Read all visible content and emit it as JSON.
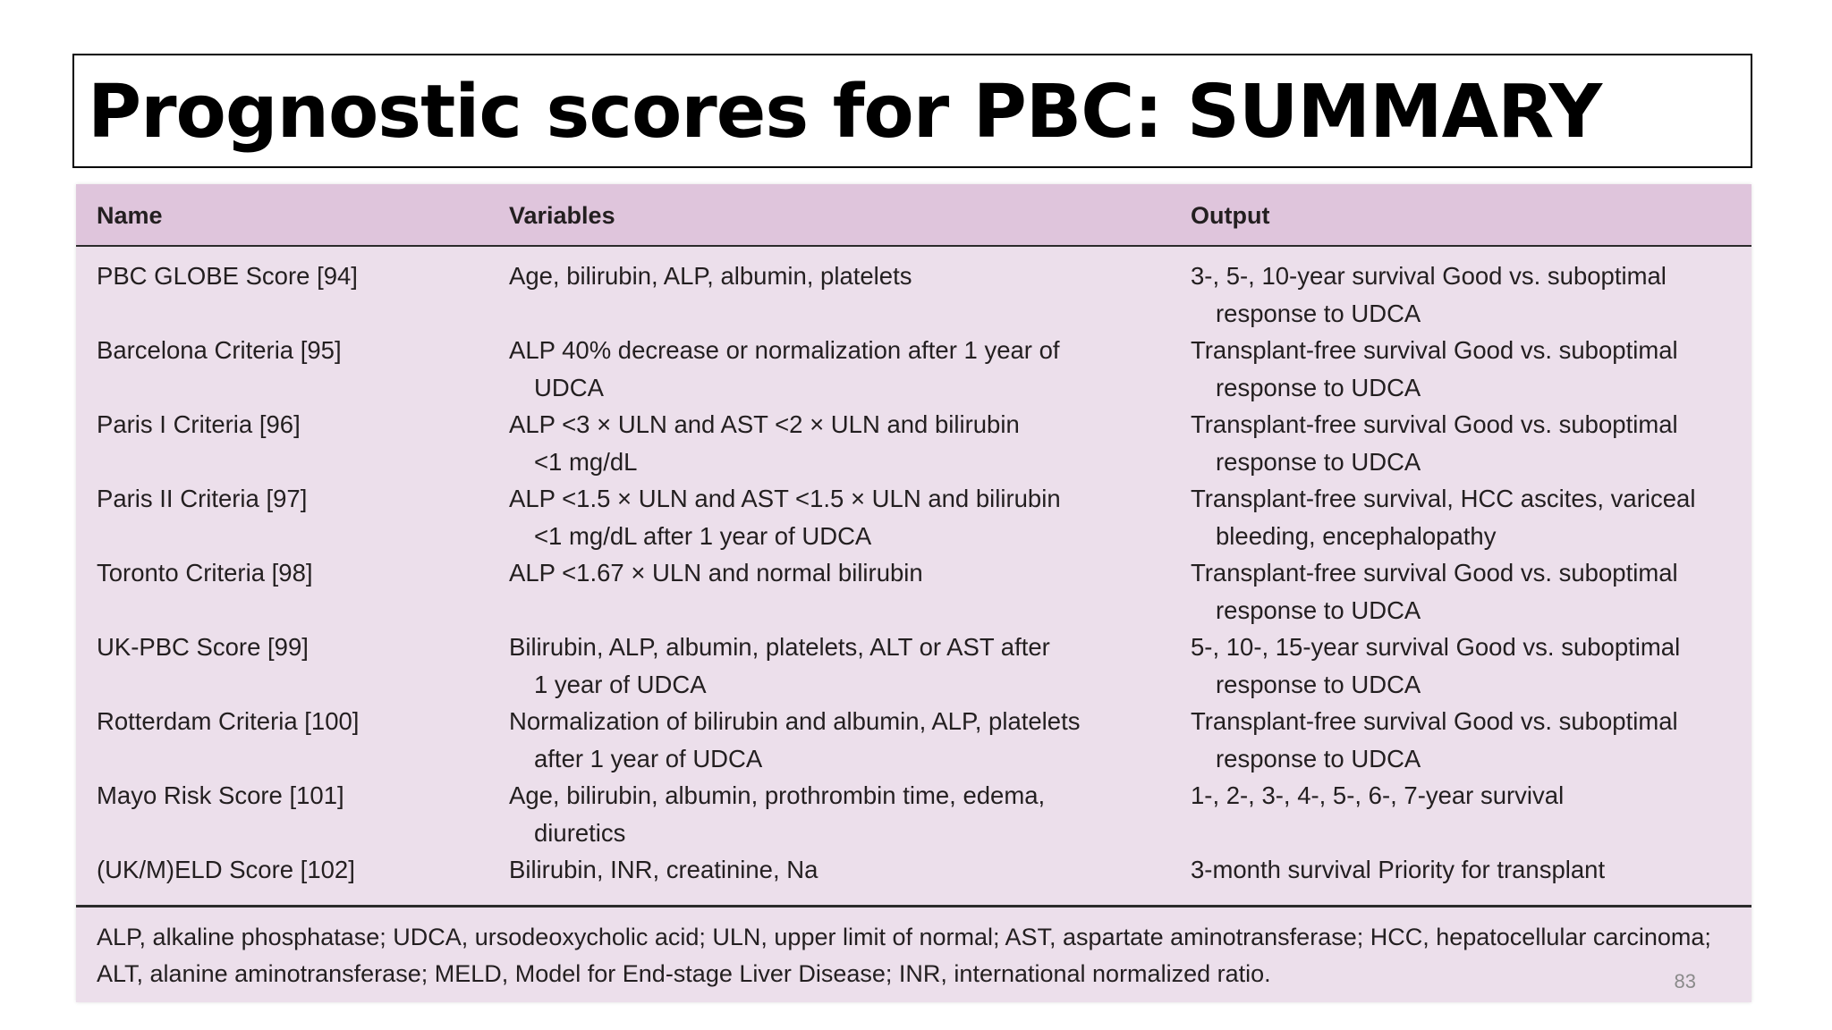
{
  "slide": {
    "title": "Prognostic scores for PBC: SUMMARY",
    "page_number": "83"
  },
  "table": {
    "headers": {
      "name": "Name",
      "variables": "Variables",
      "output": "Output"
    },
    "rows": [
      {
        "name": "PBC GLOBE Score [94]",
        "variables": [
          "Age, bilirubin, ALP, albumin, platelets"
        ],
        "output": [
          "3-, 5-, 10-year survival Good vs. suboptimal",
          "response to UDCA"
        ]
      },
      {
        "name": "Barcelona Criteria [95]",
        "variables": [
          "ALP 40% decrease or normalization after 1 year of",
          "UDCA"
        ],
        "output": [
          "Transplant-free survival Good vs. suboptimal",
          "response to UDCA"
        ]
      },
      {
        "name": "Paris I Criteria [96]",
        "variables": [
          "ALP <3 × ULN and AST <2 × ULN and bilirubin",
          "<1 mg/dL"
        ],
        "output": [
          "Transplant-free survival Good vs. suboptimal",
          "response to UDCA"
        ]
      },
      {
        "name": "Paris II Criteria [97]",
        "variables": [
          "ALP <1.5 × ULN and AST <1.5 × ULN and bilirubin",
          "<1 mg/dL after 1 year of UDCA"
        ],
        "output": [
          "Transplant-free survival, HCC ascites, variceal",
          "bleeding, encephalopathy"
        ]
      },
      {
        "name": "Toronto Criteria [98]",
        "variables": [
          "ALP <1.67 × ULN and normal bilirubin"
        ],
        "output": [
          "Transplant-free survival Good vs. suboptimal",
          "response to UDCA"
        ]
      },
      {
        "name": "UK-PBC Score [99]",
        "variables": [
          "Bilirubin, ALP, albumin, platelets, ALT or AST after",
          "1 year of UDCA"
        ],
        "output": [
          "5-, 10-, 15-year survival Good vs. suboptimal",
          "response to UDCA"
        ]
      },
      {
        "name": "Rotterdam Criteria [100]",
        "variables": [
          "Normalization of bilirubin and albumin, ALP, platelets",
          "after 1 year of UDCA"
        ],
        "output": [
          "Transplant-free survival Good vs. suboptimal",
          "response to UDCA"
        ]
      },
      {
        "name": "Mayo Risk Score [101]",
        "variables": [
          "Age, bilirubin, albumin, prothrombin time, edema,",
          "diuretics"
        ],
        "output": [
          "1-, 2-, 3-, 4-, 5-, 6-, 7-year survival"
        ]
      },
      {
        "name": "(UK/M)ELD Score [102]",
        "variables": [
          "Bilirubin, INR, creatinine, Na"
        ],
        "output": [
          "3-month survival Priority for transplant"
        ]
      }
    ],
    "footnote": [
      "ALP, alkaline phosphatase; UDCA, ursodeoxycholic acid; ULN, upper limit of normal; AST, aspartate aminotransferase; HCC, hepatocellular carcinoma;",
      "ALT, alanine aminotransferase; MELD, Model for End-stage Liver Disease; INR, international normalized ratio."
    ]
  }
}
